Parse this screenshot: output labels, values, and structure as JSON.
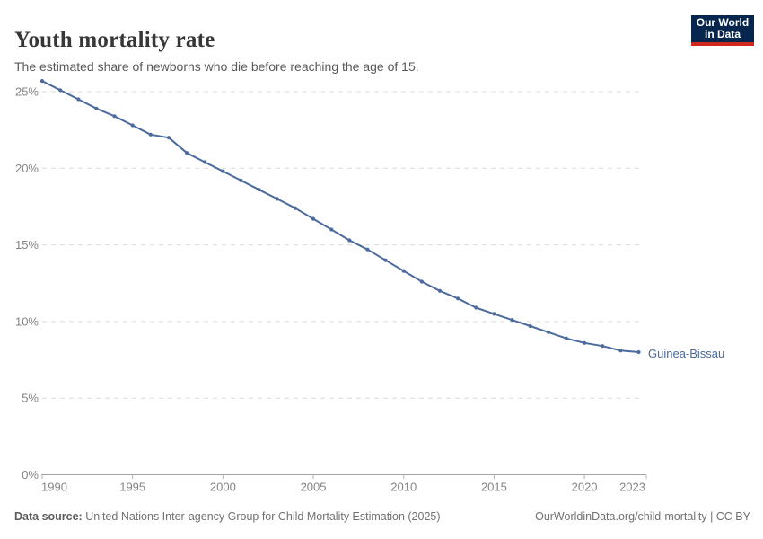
{
  "header": {
    "title": "Youth mortality rate",
    "subtitle": "The estimated share of newborns who die before reaching the age of 15."
  },
  "logo": {
    "line1": "Our World",
    "line2": "in Data",
    "background_color": "#06264d",
    "accent_color": "#d1281e"
  },
  "chart_data": {
    "type": "line",
    "title": "Youth mortality rate",
    "subtitle": "The estimated share of newborns who die before reaching the age of 15.",
    "xlabel": "",
    "ylabel": "",
    "x_range": [
      1990,
      2023
    ],
    "ylim": [
      0,
      25
    ],
    "grid": "horizontal-dashed",
    "legend_position": "end-of-line-label",
    "x": [
      1990,
      1991,
      1992,
      1993,
      1994,
      1995,
      1996,
      1997,
      1998,
      1999,
      2000,
      2001,
      2002,
      2003,
      2004,
      2005,
      2006,
      2007,
      2008,
      2009,
      2010,
      2011,
      2012,
      2013,
      2014,
      2015,
      2016,
      2017,
      2018,
      2019,
      2020,
      2021,
      2022,
      2023
    ],
    "series": [
      {
        "name": "Guinea-Bissau",
        "color": "#4c6a9c",
        "values": [
          25.7,
          25.1,
          24.5,
          23.9,
          23.4,
          22.8,
          22.2,
          22.0,
          21.0,
          20.4,
          19.8,
          19.2,
          18.6,
          18.0,
          17.4,
          16.7,
          16.0,
          15.3,
          14.7,
          14.0,
          13.3,
          12.6,
          12.0,
          11.5,
          10.9,
          10.5,
          10.1,
          9.7,
          9.3,
          8.9,
          8.6,
          8.4,
          8.1,
          8.0
        ]
      }
    ],
    "y_ticks": [
      {
        "value": 0,
        "label": "0%"
      },
      {
        "value": 5,
        "label": "5%"
      },
      {
        "value": 10,
        "label": "10%"
      },
      {
        "value": 15,
        "label": "15%"
      },
      {
        "value": 20,
        "label": "20%"
      },
      {
        "value": 25,
        "label": "25%"
      }
    ],
    "x_ticks": [
      {
        "value": 1990,
        "label": "1990"
      },
      {
        "value": 1995,
        "label": "1995"
      },
      {
        "value": 2000,
        "label": "2000"
      },
      {
        "value": 2005,
        "label": "2005"
      },
      {
        "value": 2010,
        "label": "2010"
      },
      {
        "value": 2015,
        "label": "2015"
      },
      {
        "value": 2020,
        "label": "2020"
      },
      {
        "value": 2023,
        "label": "2023"
      }
    ]
  },
  "colors": {
    "line": "#4c6a9c",
    "grid": "#dcdcdc",
    "axis": "#a3a3a3",
    "tick_mark": "#b0b0b0",
    "tick_label": "#858585",
    "title": "#373737",
    "subtitle": "#595959",
    "footer": "#717171"
  },
  "footer": {
    "data_source_label": "Data source:",
    "data_source_text": " United Nations Inter-agency Group for Child Mortality Estimation (2025)",
    "link_text": "OurWorldinData.org/child-mortality | CC BY"
  }
}
